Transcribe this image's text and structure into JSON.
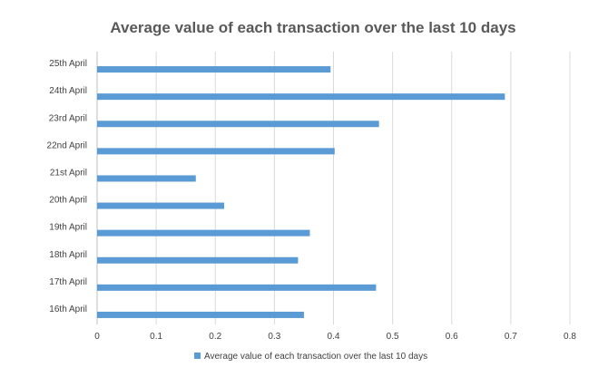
{
  "chart_data": {
    "type": "bar",
    "orientation": "horizontal",
    "title": "Average value of each transaction over the last 10 days",
    "categories": [
      "25th April",
      "24th April",
      "23rd April",
      "22nd April",
      "21st April",
      "20th April",
      "19th April",
      "18th April",
      "17th April",
      "16th April"
    ],
    "series": [
      {
        "name": "Average value of each transaction over the last 10 days",
        "values": [
          0.395,
          0.69,
          0.477,
          0.402,
          0.167,
          0.215,
          0.36,
          0.34,
          0.472,
          0.35
        ],
        "color": "#5B9BD5"
      }
    ],
    "xlim": [
      0,
      0.8
    ],
    "xticks": [
      0,
      0.1,
      0.2,
      0.3,
      0.4,
      0.5,
      0.6,
      0.7,
      0.8
    ],
    "xtick_labels": [
      "0",
      "0.1",
      "0.2",
      "0.3",
      "0.4",
      "0.5",
      "0.6",
      "0.7",
      "0.8"
    ],
    "grid": true,
    "legend": "bottom"
  }
}
